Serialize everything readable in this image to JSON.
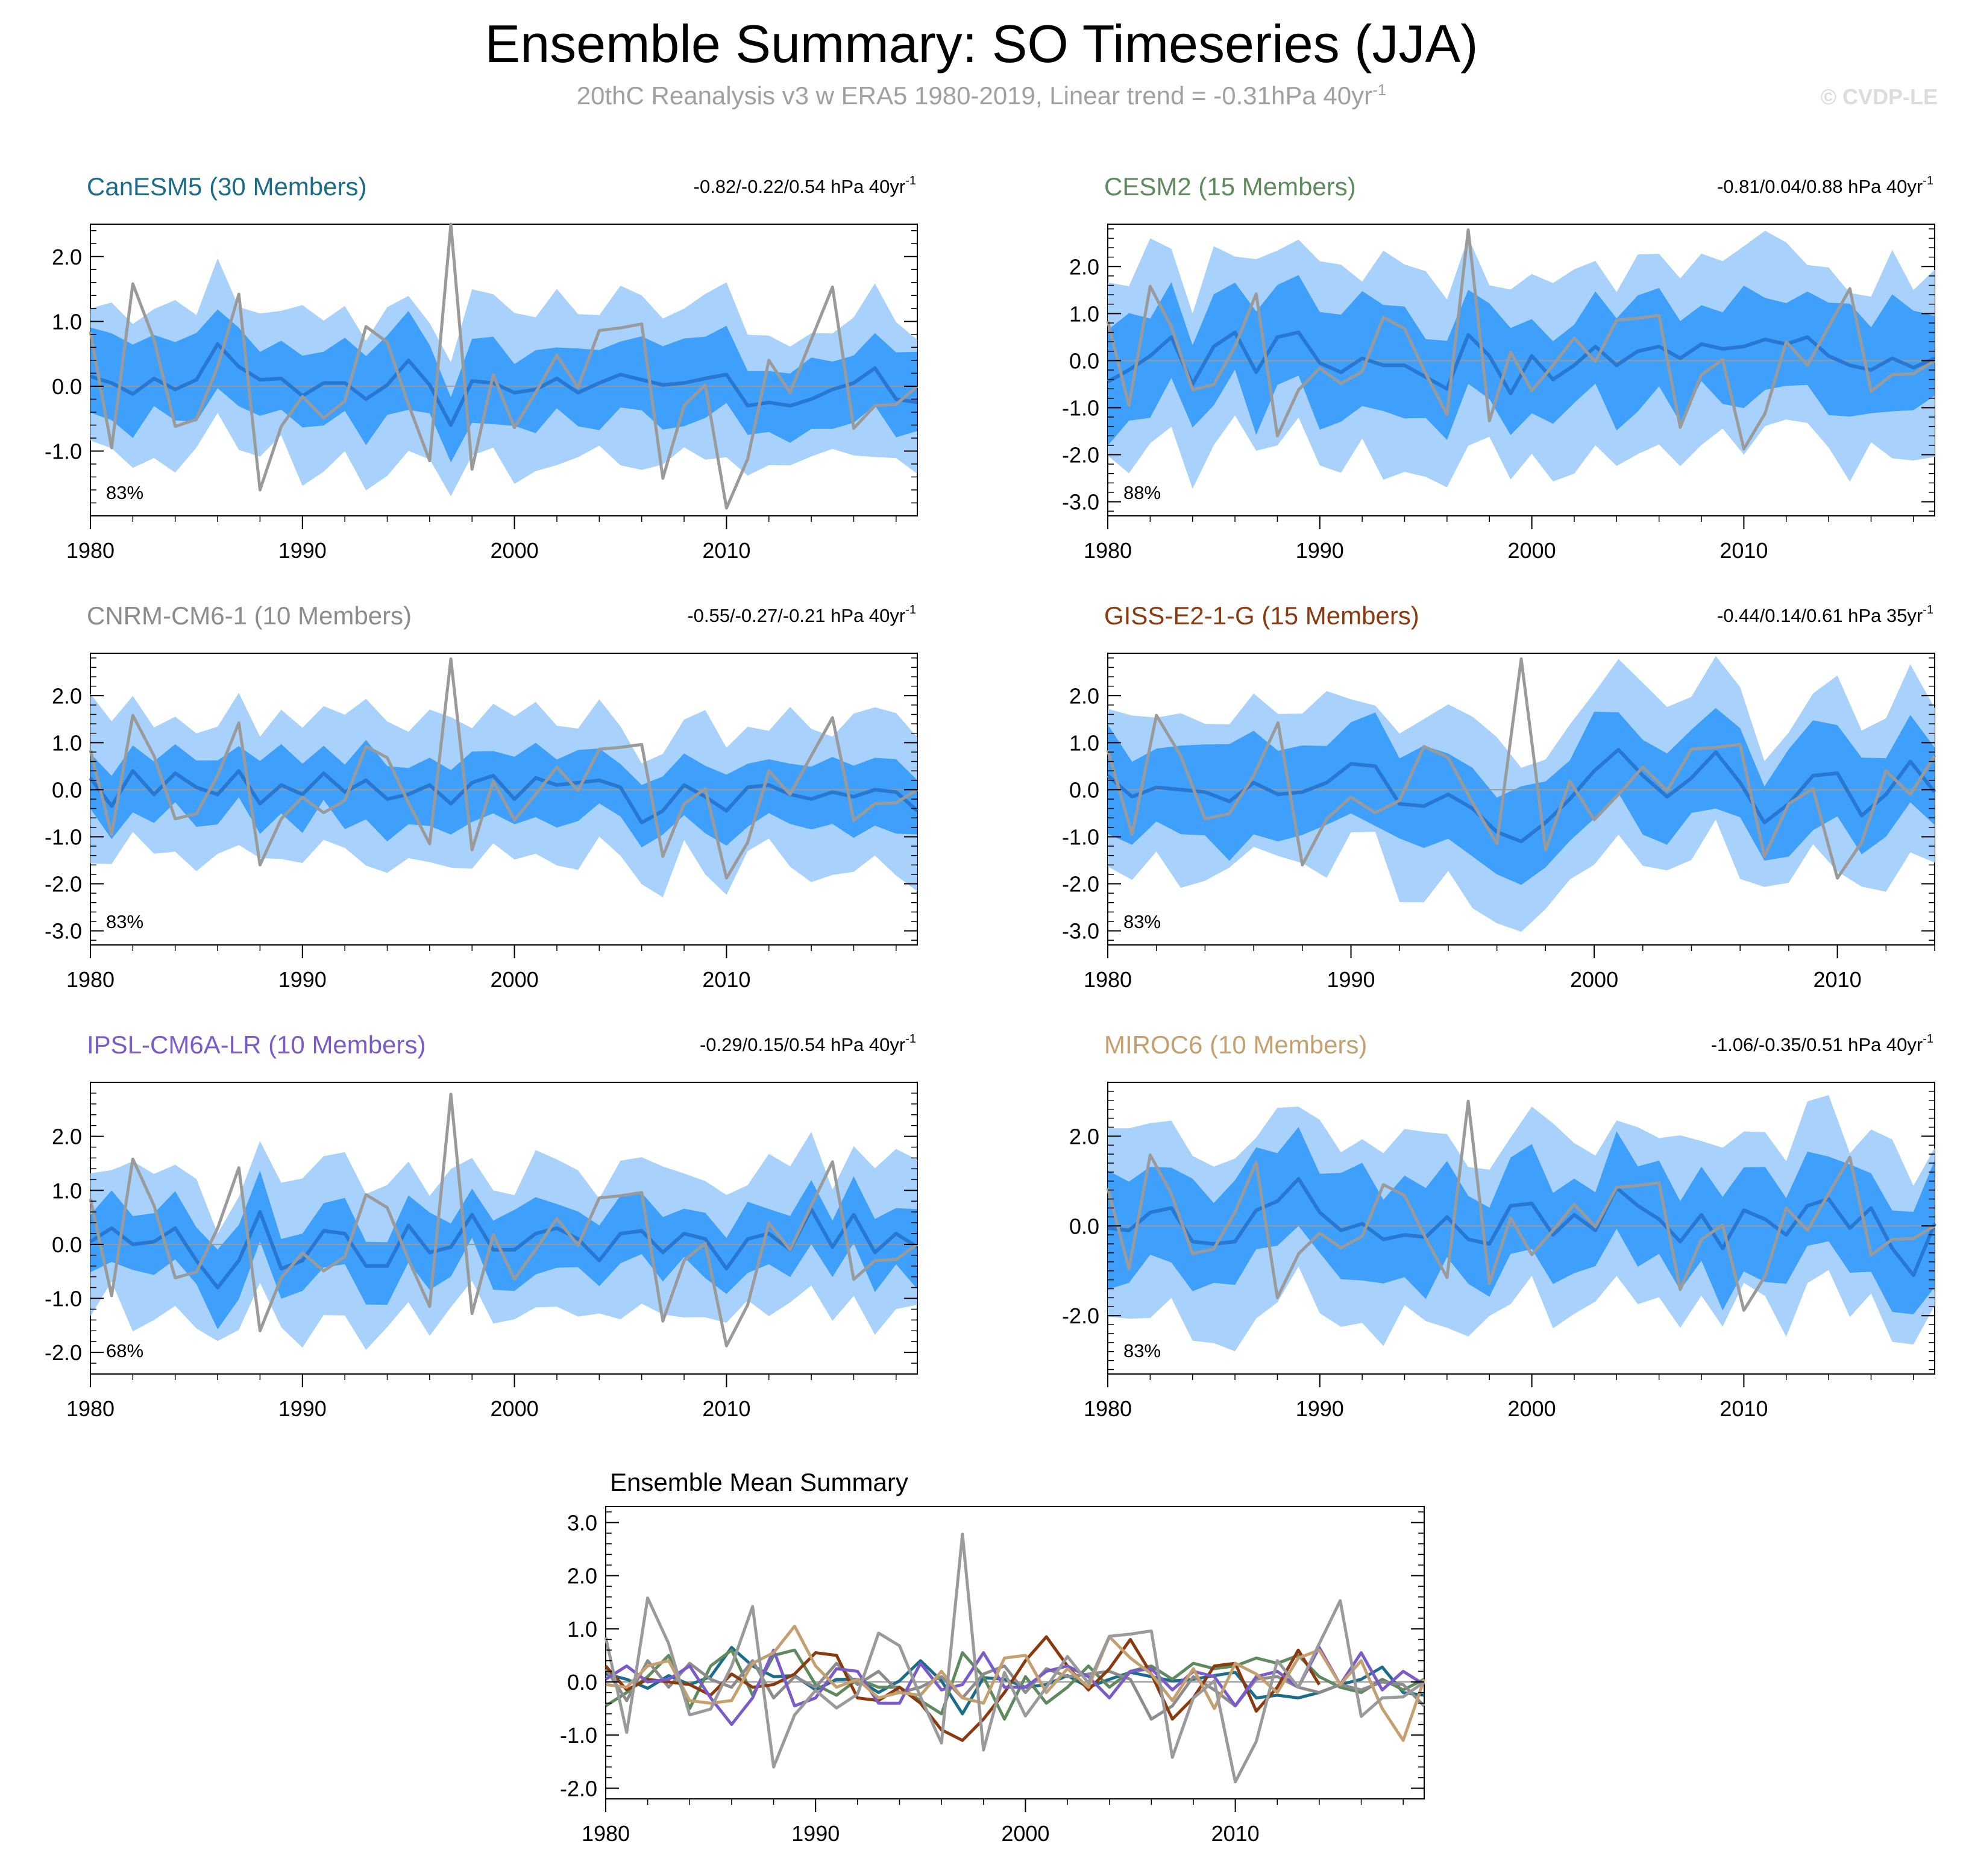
{
  "title": "Ensemble Summary: SO Timeseries (JJA)",
  "subtitle_main": "20thC Reanalysis v3 w ERA5 1980-2019, Linear trend = -0.31hPa 40yr",
  "subtitle_sup": "-1",
  "watermark": "© CVDP-LE",
  "colors": {
    "outer_band": "#a8d2fb",
    "inner_band": "#3fa0fb",
    "ensemble_mean": "#2878d2",
    "observed": "#9a9a9a"
  },
  "observed": [
    0.84,
    -0.95,
    1.58,
    0.72,
    -0.62,
    -0.51,
    0.3,
    1.42,
    -1.6,
    -0.62,
    -0.16,
    -0.49,
    -0.23,
    0.92,
    0.68,
    -0.28,
    -1.15,
    2.78,
    -1.28,
    0.18,
    -0.64,
    -0.1,
    0.48,
    -0.02,
    0.86,
    0.9,
    0.96,
    -1.42,
    -0.3,
    0.02,
    -1.88,
    -1.12,
    0.4,
    -0.1,
    0.72,
    1.53,
    -0.65,
    -0.3,
    -0.28,
    0.0
  ],
  "chart_data": [
    {
      "type": "line",
      "title": "CanESM5 (30 Members)",
      "title_color": "#1b6c8a",
      "trend_label": "-0.82/-0.22/0.54 hPa 40yr",
      "trend_sup": "-1",
      "percent_label": "83%",
      "x_start": 1980,
      "xlim": [
        1980,
        2019
      ],
      "ylim": [
        -2.0,
        2.5
      ],
      "yticks": [
        "2.0",
        "1.0",
        "0.0",
        "-1.0"
      ],
      "ytick_values": [
        2,
        1,
        0,
        -1
      ],
      "xticks": [
        "1980",
        "1990",
        "2000",
        "2010"
      ],
      "xtick_values": [
        1980,
        1990,
        2000,
        2010
      ],
      "mean": [
        0.15,
        0.05,
        -0.12,
        0.12,
        -0.05,
        0.1,
        0.65,
        0.3,
        0.1,
        0.12,
        -0.15,
        0.05,
        0.05,
        -0.2,
        0.02,
        0.4,
        0.02,
        -0.6,
        0.08,
        0.05,
        -0.1,
        -0.05,
        0.12,
        -0.1,
        0.05,
        0.18,
        0.1,
        0.02,
        0.05,
        0.12,
        0.18,
        -0.3,
        -0.25,
        -0.3,
        -0.2,
        -0.05,
        0.05,
        0.28,
        -0.2,
        -0.25
      ],
      "spread_inner": 0.6,
      "spread_outer": 1.15
    },
    {
      "type": "line",
      "title": "CESM2 (15 Members)",
      "title_color": "#5e8a5e",
      "trend_label": "-0.81/0.04/0.88 hPa 40yr",
      "trend_sup": "-1",
      "percent_label": "88%",
      "x_start": 1980,
      "xlim": [
        1980,
        2019
      ],
      "ylim": [
        -3.3,
        2.9
      ],
      "yticks": [
        "2.0",
        "1.0",
        "0.0",
        "-1.0",
        "-2.0",
        "-3.0"
      ],
      "ytick_values": [
        2,
        1,
        0,
        -1,
        -2,
        -3
      ],
      "xticks": [
        "1980",
        "1990",
        "2000",
        "2010"
      ],
      "xtick_values": [
        1980,
        1990,
        2000,
        2010
      ],
      "mean": [
        -0.45,
        -0.2,
        0.1,
        0.5,
        -0.5,
        0.3,
        0.6,
        -0.25,
        0.5,
        0.6,
        -0.05,
        -0.25,
        0.05,
        -0.1,
        -0.1,
        -0.35,
        -0.6,
        0.55,
        0.1,
        -0.7,
        0.1,
        -0.4,
        -0.1,
        0.3,
        -0.1,
        0.2,
        0.3,
        0.05,
        0.35,
        0.25,
        0.3,
        0.45,
        0.35,
        0.5,
        0.1,
        -0.1,
        -0.2,
        0.05,
        -0.15,
        0.05
      ],
      "spread_inner": 1.1,
      "spread_outer": 2.0
    },
    {
      "type": "line",
      "title": "CNRM-CM6-1 (10 Members)",
      "title_color": "#8c8c8c",
      "trend_label": "-0.55/-0.27/-0.21 hPa 40yr",
      "trend_sup": "-1",
      "percent_label": "83%",
      "x_start": 1980,
      "xlim": [
        1980,
        2019
      ],
      "ylim": [
        -3.3,
        2.9
      ],
      "yticks": [
        "2.0",
        "1.0",
        "0.0",
        "-1.0",
        "-2.0",
        "-3.0"
      ],
      "ytick_values": [
        2,
        1,
        0,
        -1,
        -2,
        -3
      ],
      "xticks": [
        "1980",
        "1990",
        "2000",
        "2010"
      ],
      "xtick_values": [
        1980,
        1990,
        2000,
        2010
      ],
      "mean": [
        0.25,
        -0.35,
        0.4,
        -0.1,
        0.35,
        0.05,
        -0.1,
        0.4,
        -0.3,
        0.1,
        -0.1,
        0.35,
        -0.05,
        0.2,
        -0.2,
        -0.1,
        0.1,
        -0.3,
        0.15,
        0.3,
        -0.2,
        0.25,
        0.1,
        0.15,
        0.2,
        0.05,
        -0.7,
        -0.45,
        0.1,
        -0.15,
        -0.45,
        0.05,
        0.1,
        -0.1,
        -0.2,
        -0.05,
        -0.15,
        0.0,
        -0.05,
        -0.45
      ],
      "spread_inner": 0.7,
      "spread_outer": 1.5
    },
    {
      "type": "line",
      "title": "GISS-E2-1-G (15 Members)",
      "title_color": "#8b3a0f",
      "trend_label": "-0.44/0.14/0.61 hPa 35yr",
      "trend_sup": "-1",
      "percent_label": "83%",
      "x_start": 1980,
      "xlim": [
        1980,
        2014
      ],
      "ylim": [
        -3.3,
        2.9
      ],
      "yticks": [
        "2.0",
        "1.0",
        "0.0",
        "-1.0",
        "-2.0",
        "-3.0"
      ],
      "ytick_values": [
        2,
        1,
        0,
        -1,
        -2,
        -3
      ],
      "xticks": [
        "1980",
        "1990",
        "2000",
        "2010"
      ],
      "xtick_values": [
        1980,
        1990,
        2000,
        2010
      ],
      "mean": [
        0.3,
        -0.15,
        0.05,
        0.0,
        -0.05,
        -0.25,
        0.15,
        -0.1,
        -0.05,
        0.15,
        0.55,
        0.5,
        -0.3,
        -0.35,
        -0.1,
        -0.4,
        -0.9,
        -1.1,
        -0.7,
        -0.2,
        0.4,
        0.85,
        0.3,
        -0.15,
        0.25,
        0.8,
        0.15,
        -0.7,
        -0.3,
        0.3,
        0.35,
        -0.55,
        -0.1,
        0.6,
        -0.05
      ],
      "spread_inner": 1.0,
      "spread_outer": 1.7
    },
    {
      "type": "line",
      "title": "IPSL-CM6A-LR (10 Members)",
      "title_color": "#7a5bc9",
      "trend_label": "-0.29/0.15/0.54 hPa 40yr",
      "trend_sup": "-1",
      "percent_label": "68%",
      "x_start": 1980,
      "xlim": [
        1980,
        2019
      ],
      "ylim": [
        -2.4,
        3.0
      ],
      "yticks": [
        "2.0",
        "1.0",
        "0.0",
        "-1.0",
        "-2.0"
      ],
      "ytick_values": [
        2,
        1,
        0,
        -1,
        -2
      ],
      "xticks": [
        "1980",
        "1990",
        "2000",
        "2010"
      ],
      "xtick_values": [
        1980,
        1990,
        2000,
        2010
      ],
      "mean": [
        0.05,
        0.3,
        0.0,
        0.05,
        0.3,
        -0.3,
        -0.8,
        -0.3,
        0.6,
        -0.45,
        -0.3,
        0.25,
        0.2,
        -0.4,
        -0.4,
        0.35,
        -0.15,
        -0.05,
        0.55,
        -0.1,
        -0.1,
        0.2,
        0.3,
        0.1,
        -0.3,
        0.2,
        0.25,
        -0.15,
        0.2,
        0.1,
        -0.45,
        0.1,
        0.2,
        -0.1,
        0.65,
        -0.05,
        0.55,
        -0.15,
        0.2,
        -0.05
      ],
      "spread_inner": 0.6,
      "spread_outer": 1.3
    },
    {
      "type": "line",
      "title": "MIROC6 (10 Members)",
      "title_color": "#c4a070",
      "trend_label": "-1.06/-0.35/0.51 hPa 40yr",
      "trend_sup": "-1",
      "percent_label": "83%",
      "x_start": 1980,
      "xlim": [
        1980,
        2019
      ],
      "ylim": [
        -3.3,
        3.2
      ],
      "yticks": [
        "2.0",
        "0.0",
        "-2.0"
      ],
      "ytick_values": [
        2,
        0,
        -2
      ],
      "xticks": [
        "1980",
        "1990",
        "2000",
        "2010"
      ],
      "xtick_values": [
        1980,
        1990,
        2000,
        2010
      ],
      "mean": [
        -0.05,
        -0.1,
        0.3,
        0.4,
        -0.35,
        -0.4,
        -0.35,
        0.35,
        0.55,
        1.05,
        0.3,
        -0.1,
        0.05,
        -0.3,
        -0.2,
        -0.25,
        0.2,
        -0.3,
        -0.4,
        0.45,
        0.5,
        -0.2,
        0.25,
        -0.1,
        0.85,
        0.45,
        0.15,
        -0.35,
        0.25,
        -0.5,
        0.35,
        0.15,
        -0.2,
        0.45,
        0.6,
        -0.05,
        0.4,
        -0.5,
        -1.1,
        0.05
      ],
      "spread_inner": 1.1,
      "spread_outer": 2.0
    },
    {
      "type": "line",
      "title": "Ensemble Mean Summary",
      "x_start": 1980,
      "xlim": [
        1980,
        2019
      ],
      "ylim": [
        -2.2,
        3.3
      ],
      "yticks": [
        "3.0",
        "2.0",
        "1.0",
        "0.0",
        "-1.0",
        "-2.0"
      ],
      "ytick_values": [
        3,
        2,
        1,
        0,
        -1,
        -2
      ],
      "xticks": [
        "1980",
        "1990",
        "2000",
        "2010"
      ],
      "xtick_values": [
        1980,
        1990,
        2000,
        2010
      ]
    }
  ]
}
